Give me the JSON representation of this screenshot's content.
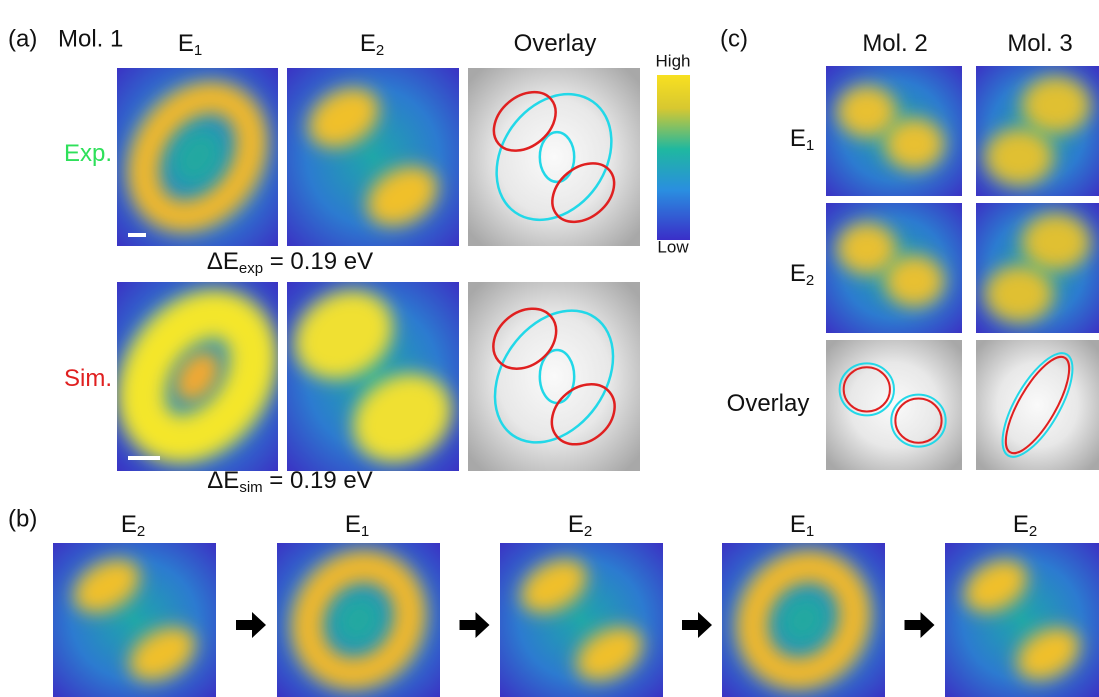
{
  "panel_a": {
    "label": "(a)",
    "molecule": "Mol. 1",
    "columns": [
      {
        "base": "E",
        "sub": "1"
      },
      {
        "base": "E",
        "sub": "2"
      },
      {
        "base": "Overlay"
      }
    ],
    "rows": [
      {
        "base": "Exp."
      },
      {
        "base": "Sim."
      }
    ],
    "energy_labels": [
      {
        "base": "ΔE",
        "sub": "exp",
        "rest": " = 0.19 eV"
      },
      {
        "base": "ΔE",
        "sub": "sim",
        "rest": " = 0.19 eV"
      }
    ],
    "colorbar": {
      "high": "High",
      "low": "Low"
    }
  },
  "panel_b": {
    "label": "(b)",
    "frames": [
      {
        "base": "E",
        "sub": "2"
      },
      {
        "base": "E",
        "sub": "1"
      },
      {
        "base": "E",
        "sub": "2"
      },
      {
        "base": "E",
        "sub": "1"
      },
      {
        "base": "E",
        "sub": "2"
      }
    ]
  },
  "panel_c": {
    "label": "(c)",
    "columns": [
      {
        "base": "Mol. 2"
      },
      {
        "base": "Mol. 3"
      }
    ],
    "rows": [
      {
        "base": "E",
        "sub": "1"
      },
      {
        "base": "E",
        "sub": "2"
      },
      {
        "base": "Overlay"
      }
    ]
  }
}
